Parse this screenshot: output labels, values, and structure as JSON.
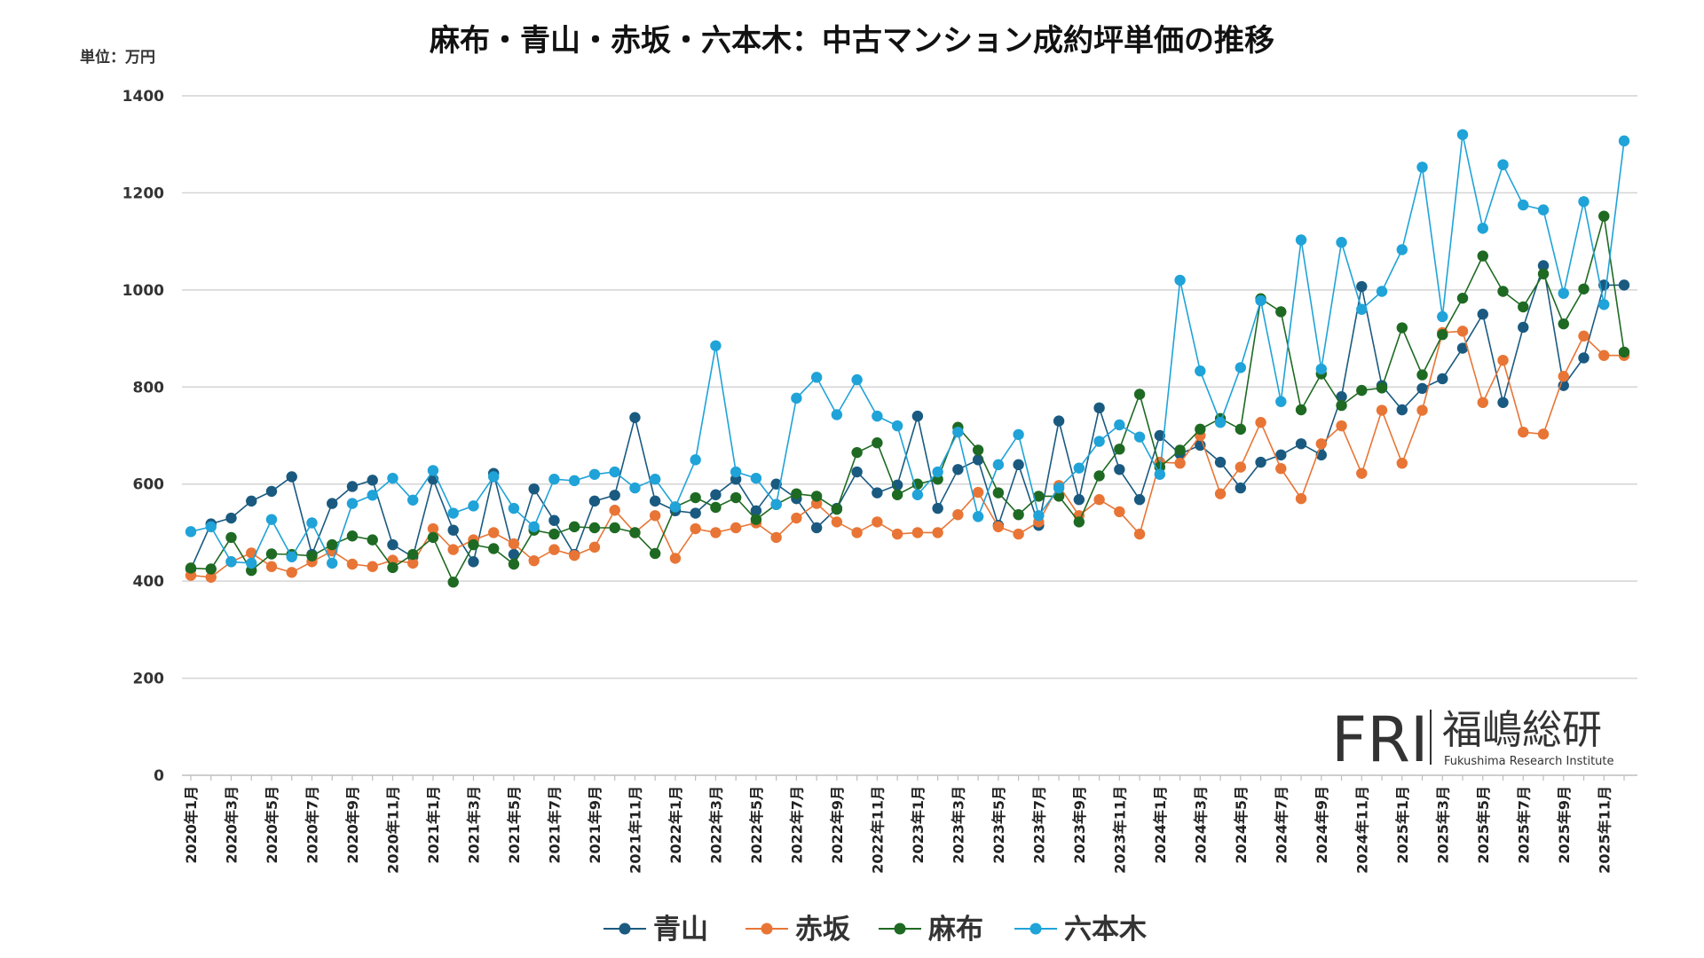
{
  "chart_data": {
    "type": "line",
    "title": "麻布・青山・赤坂・六本木：中古マンション成約坪単価の推移",
    "unit_label": "単位：万円",
    "ylim": [
      0,
      1400
    ],
    "yticks": [
      0,
      200,
      400,
      600,
      800,
      1000,
      1200,
      1400
    ],
    "grid": true,
    "legend_position": "bottom",
    "x": [
      "2020年1月",
      "2020年2月",
      "2020年3月",
      "2020年4月",
      "2020年5月",
      "2020年6月",
      "2020年7月",
      "2020年8月",
      "2020年9月",
      "2020年10月",
      "2020年11月",
      "2020年12月",
      "2021年1月",
      "2021年2月",
      "2021年3月",
      "2021年4月",
      "2021年5月",
      "2021年6月",
      "2021年7月",
      "2021年8月",
      "2021年9月",
      "2021年10月",
      "2021年11月",
      "2021年12月",
      "2022年1月",
      "2022年2月",
      "2022年3月",
      "2022年4月",
      "2022年5月",
      "2022年6月",
      "2022年7月",
      "2022年8月",
      "2022年9月",
      "2022年10月",
      "2022年11月",
      "2022年12月",
      "2023年1月",
      "2023年2月",
      "2023年3月",
      "2023年4月",
      "2023年5月",
      "2023年6月",
      "2023年7月",
      "2023年8月",
      "2023年9月",
      "2023年10月",
      "2023年11月",
      "2023年12月",
      "2024年1月",
      "2024年2月",
      "2024年3月",
      "2024年4月",
      "2024年5月",
      "2024年6月",
      "2024年7月",
      "2024年8月",
      "2024年9月",
      "2024年10月",
      "2024年11月",
      "2024年12月",
      "2025年1月",
      "2025年2月",
      "2025年3月",
      "2025年4月",
      "2025年5月",
      "2025年6月",
      "2025年7月",
      "2025年8月",
      "2025年9月",
      "2025年10月",
      "2025年11月",
      "2025年12月"
    ],
    "xtick_labels": [
      "2020年1月",
      "2020年3月",
      "2020年5月",
      "2020年7月",
      "2020年9月",
      "2020年11月",
      "2021年1月",
      "2021年3月",
      "2021年5月",
      "2021年7月",
      "2021年9月",
      "2021年11月",
      "2022年1月",
      "2022年3月",
      "2022年5月",
      "2022年7月",
      "2022年9月",
      "2022年11月",
      "2023年1月",
      "2023年3月",
      "2023年5月",
      "2023年7月",
      "2023年9月",
      "2023年11月",
      "2024年1月",
      "2024年3月",
      "2024年5月",
      "2024年7月",
      "2024年9月",
      "2024年11月",
      "2025年1月",
      "2025年3月",
      "2025年5月",
      "2025年7月",
      "2025年9月",
      "2025年11月"
    ],
    "series": [
      {
        "name": "青山",
        "color": "#1a5a80",
        "values": [
          425,
          518,
          530,
          565,
          585,
          615,
          455,
          560,
          595,
          608,
          475,
          450,
          610,
          505,
          440,
          622,
          455,
          590,
          525,
          455,
          565,
          577,
          737,
          565,
          545,
          540,
          578,
          610,
          545,
          600,
          570,
          510,
          550,
          625,
          582,
          598,
          740,
          550,
          630,
          650,
          515,
          640,
          515,
          730,
          568,
          757,
          630,
          568,
          700,
          662,
          680,
          645,
          592,
          645,
          660,
          683,
          660,
          780,
          1007,
          803,
          753,
          797,
          817,
          880,
          950,
          768,
          923,
          1050,
          803,
          860,
          1010,
          1010
        ]
      },
      {
        "name": "赤坂",
        "color": "#e87535",
        "values": [
          412,
          408,
          440,
          458,
          430,
          418,
          440,
          462,
          435,
          430,
          443,
          437,
          508,
          465,
          485,
          500,
          477,
          442,
          465,
          453,
          470,
          546,
          500,
          535,
          447,
          508,
          500,
          510,
          520,
          490,
          530,
          560,
          522,
          500,
          522,
          497,
          500,
          500,
          537,
          583,
          512,
          497,
          522,
          597,
          535,
          568,
          543,
          497,
          645,
          643,
          700,
          580,
          635,
          727,
          632,
          570,
          683,
          720,
          622,
          752,
          643,
          752,
          912,
          915,
          768,
          855,
          707,
          703,
          822,
          905,
          865,
          865
        ]
      },
      {
        "name": "麻布",
        "color": "#1e6a23",
        "values": [
          427,
          425,
          490,
          422,
          456,
          455,
          452,
          475,
          493,
          485,
          428,
          455,
          490,
          398,
          475,
          467,
          435,
          505,
          497,
          512,
          510,
          510,
          500,
          457,
          553,
          572,
          552,
          572,
          527,
          558,
          580,
          575,
          548,
          665,
          685,
          578,
          600,
          610,
          717,
          670,
          582,
          537,
          575,
          575,
          522,
          617,
          672,
          785,
          635,
          670,
          713,
          735,
          713,
          982,
          955,
          753,
          827,
          762,
          793,
          798,
          922,
          825,
          908,
          983,
          1070,
          997,
          965,
          1033,
          930,
          1002,
          1152,
          872
        ]
      },
      {
        "name": "六本木",
        "color": "#1fa3d8",
        "values": [
          502,
          512,
          440,
          437,
          527,
          450,
          520,
          437,
          560,
          577,
          612,
          567,
          628,
          540,
          555,
          615,
          550,
          512,
          610,
          607,
          620,
          625,
          592,
          610,
          553,
          650,
          885,
          625,
          612,
          558,
          777,
          820,
          743,
          815,
          740,
          720,
          578,
          625,
          707,
          533,
          640,
          702,
          535,
          592,
          633,
          688,
          722,
          697,
          620,
          1020,
          833,
          727,
          840,
          978,
          770,
          1103,
          837,
          1098,
          960,
          997,
          1083,
          1253,
          945,
          1320,
          1127,
          1258,
          1175,
          1165,
          993,
          1182,
          970,
          1307
        ]
      }
    ]
  },
  "logo": {
    "mark": "FRI",
    "name_jp": "福嶋総研",
    "name_en": "Fukushima Research Institute"
  }
}
